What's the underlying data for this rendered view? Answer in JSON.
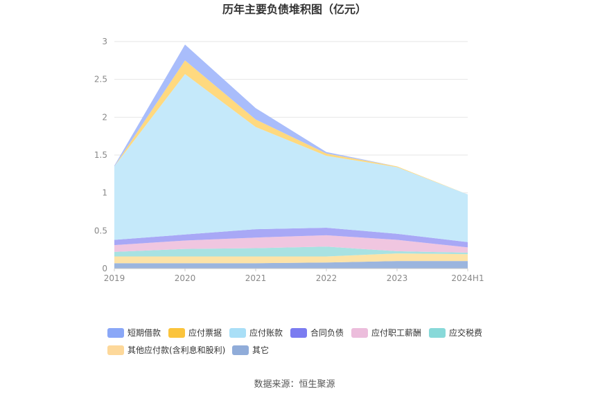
{
  "chart_data": {
    "type": "area",
    "stacked": true,
    "title": "历年主要负债堆积图（亿元）",
    "x": [
      "2019",
      "2020",
      "2021",
      "2022",
      "2023",
      "2024H1"
    ],
    "ylim": [
      0,
      3
    ],
    "yticks": [
      "0",
      "0.5",
      "1",
      "1.5",
      "2",
      "2.5",
      "3"
    ],
    "grid": true,
    "legend_position": "bottom",
    "series": [
      {
        "name": "其它",
        "color": "#9bb5de",
        "values": [
          0.07,
          0.07,
          0.07,
          0.08,
          0.1,
          0.1
        ]
      },
      {
        "name": "其他应付款(含利息和股利)",
        "color": "#fde3a7",
        "values": [
          0.09,
          0.09,
          0.09,
          0.08,
          0.1,
          0.09
        ]
      },
      {
        "name": "应交税费",
        "color": "#a8e2e2",
        "values": [
          0.06,
          0.1,
          0.11,
          0.13,
          0.03,
          0.02
        ]
      },
      {
        "name": "应付职工薪酬",
        "color": "#f0c6e0",
        "values": [
          0.09,
          0.11,
          0.14,
          0.15,
          0.15,
          0.07
        ]
      },
      {
        "name": "合同负债",
        "color": "#a8a8f6",
        "values": [
          0.07,
          0.08,
          0.11,
          0.1,
          0.08,
          0.07
        ]
      },
      {
        "name": "应付账款",
        "color": "#c5e9fa",
        "values": [
          0.97,
          2.12,
          1.35,
          0.95,
          0.88,
          0.63
        ]
      },
      {
        "name": "应付票据",
        "color": "#ffd97f",
        "values": [
          0.0,
          0.18,
          0.1,
          0.03,
          0.01,
          0.0
        ]
      },
      {
        "name": "短期借款",
        "color": "#a9bdfb",
        "values": [
          0.01,
          0.21,
          0.15,
          0.02,
          0.0,
          0.0
        ]
      }
    ]
  },
  "legend": [
    {
      "label": "短期借款",
      "color": "#8aa7f7"
    },
    {
      "label": "应付票据",
      "color": "#fbc43c"
    },
    {
      "label": "应付账款",
      "color": "#a9dff7"
    },
    {
      "label": "合同负债",
      "color": "#7b7cf0"
    },
    {
      "label": "应付职工薪酬",
      "color": "#ecbddc"
    },
    {
      "label": "应交税费",
      "color": "#88d9d9"
    },
    {
      "label": "其他应付款(含利息和股利)",
      "color": "#fdd89a"
    },
    {
      "label": "其它",
      "color": "#90acd9"
    }
  ],
  "source_text": "数据来源：恒生聚源"
}
